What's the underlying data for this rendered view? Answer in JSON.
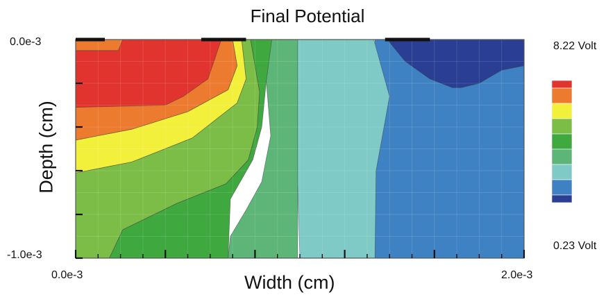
{
  "chart_data": {
    "type": "heatmap",
    "subtype": "filled-contour",
    "title": "Final Potential",
    "xlabel": "Width (cm)",
    "ylabel": "Depth (cm)",
    "x_tick_labels": [
      "0.0e-3",
      "2.0e-3"
    ],
    "y_tick_labels": [
      "0.0e-3",
      "-1.0e-3"
    ],
    "xlim": [
      0.0,
      0.002
    ],
    "ylim": [
      -0.001,
      0.0
    ],
    "colorbar": {
      "max_label": "8.22 Volt",
      "min_label": "0.23 Volt",
      "min": 0.23,
      "max": 8.22,
      "unit": "Volt",
      "colors": [
        "#2a3f93",
        "#3f82c3",
        "#7fc9c7",
        "#5db678",
        "#3fa83f",
        "#7cbd47",
        "#f3f03c",
        "#ec7a2f",
        "#e2342e"
      ]
    },
    "contact_pads_x": [
      [
        0.0,
        0.00013
      ],
      [
        0.00056,
        0.00076
      ],
      [
        0.00138,
        0.00158
      ]
    ],
    "regions": [
      {
        "color": "#3f82c3",
        "boundary": [
          [
            0.001335,
            0.0
          ],
          [
            0.002,
            0.0
          ],
          [
            0.002,
            -0.001
          ],
          [
            0.001335,
            -0.001
          ]
        ]
      },
      {
        "color": "#7fc9c7",
        "boundary": [
          [
            0.00099,
            0.0
          ],
          [
            0.00133,
            0.0
          ],
          [
            0.0014,
            -0.00026
          ],
          [
            0.00134,
            -0.0006
          ],
          [
            0.001335,
            -0.001
          ],
          [
            0.001,
            -0.001
          ],
          [
            0.00099,
            -0.00068
          ],
          [
            0.00095,
            -0.0004
          ],
          [
            0.00091,
            -0.00021
          ],
          [
            0.000875,
            0.0
          ]
        ]
      },
      {
        "color": "#5db678",
        "boundary": [
          [
            0.000875,
            0.0
          ],
          [
            0.00099,
            0.0
          ],
          [
            0.00099,
            -0.001
          ],
          [
            0.00068,
            -0.001
          ],
          [
            0.00069,
            -0.0009
          ],
          [
            0.00076,
            -0.00078
          ],
          [
            0.00083,
            -0.00065
          ],
          [
            0.00087,
            -0.00044
          ],
          [
            0.00085,
            -0.00019
          ],
          [
            0.00079,
            -9e-05
          ]
        ]
      },
      {
        "color": "#3fa83f",
        "boundary": [
          [
            0.00078,
            0.0
          ],
          [
            0.000875,
            0.0
          ],
          [
            0.00085,
            -0.00019
          ],
          [
            0.00083,
            -0.0004
          ],
          [
            0.00079,
            -0.00055
          ],
          [
            0.00069,
            -0.00073
          ],
          [
            0.00068,
            -0.001
          ],
          [
            0.00015,
            -0.001
          ],
          [
            0.00021,
            -0.00087
          ],
          [
            0.00045,
            -0.00075
          ],
          [
            0.00067,
            -0.00066
          ],
          [
            0.00077,
            -0.00055
          ],
          [
            0.00081,
            -0.0004
          ],
          [
            0.00082,
            -0.00024
          ]
        ]
      },
      {
        "color": "#7cbd47",
        "boundary": [
          [
            0.00074,
            0.0
          ],
          [
            0.00078,
            0.0
          ],
          [
            0.00082,
            -0.00024
          ],
          [
            0.00081,
            -0.0004
          ],
          [
            0.00077,
            -0.00055
          ],
          [
            0.00067,
            -0.00066
          ],
          [
            0.00045,
            -0.00075
          ],
          [
            0.00021,
            -0.00087
          ],
          [
            0.00015,
            -0.001
          ],
          [
            0.0,
            -0.001
          ],
          [
            0.0,
            -0.00061
          ],
          [
            0.00025,
            -0.00056
          ],
          [
            0.00052,
            -0.00045
          ],
          [
            0.00072,
            -0.00029
          ],
          [
            0.00076,
            -0.00018
          ]
        ]
      },
      {
        "color": "#f3f03c",
        "boundary": [
          [
            0.0007,
            0.0
          ],
          [
            0.00074,
            0.0
          ],
          [
            0.00076,
            -0.00018
          ],
          [
            0.00072,
            -0.00029
          ],
          [
            0.00052,
            -0.00045
          ],
          [
            0.00025,
            -0.00056
          ],
          [
            0.0,
            -0.00061
          ],
          [
            0.0,
            -0.00046
          ],
          [
            0.00025,
            -0.00041
          ],
          [
            0.0005,
            -0.00033
          ],
          [
            0.00068,
            -0.00023
          ],
          [
            0.00072,
            -0.00012
          ]
        ]
      },
      {
        "color": "#ec7a2f",
        "boundary": [
          [
            0.0,
            0.0
          ],
          [
            0.0007,
            0.0
          ],
          [
            0.00072,
            -0.00012
          ],
          [
            0.00068,
            -0.00023
          ],
          [
            0.0005,
            -0.00033
          ],
          [
            0.00025,
            -0.00041
          ],
          [
            0.0,
            -0.00046
          ]
        ]
      },
      {
        "color": "#e2342e",
        "boundary": [
          [
            0.00021,
            0.0
          ],
          [
            0.00065,
            0.0
          ],
          [
            0.00059,
            -0.00018
          ],
          [
            0.00048,
            -0.00026
          ],
          [
            0.0004,
            -0.0003
          ],
          [
            0.0,
            -0.00031
          ],
          [
            0.0,
            -5e-05
          ],
          [
            0.00019,
            -5e-05
          ]
        ]
      },
      {
        "color": "#2a3f93",
        "boundary": [
          [
            0.00139,
            0.0
          ],
          [
            0.002,
            0.0
          ],
          [
            0.002,
            -0.00012
          ],
          [
            0.0019,
            -0.00014
          ],
          [
            0.0018,
            -0.0002
          ],
          [
            0.00172,
            -0.00022
          ],
          [
            0.00168,
            -0.00022
          ],
          [
            0.00158,
            -0.00018
          ],
          [
            0.00147,
            -0.0001
          ]
        ]
      }
    ]
  }
}
